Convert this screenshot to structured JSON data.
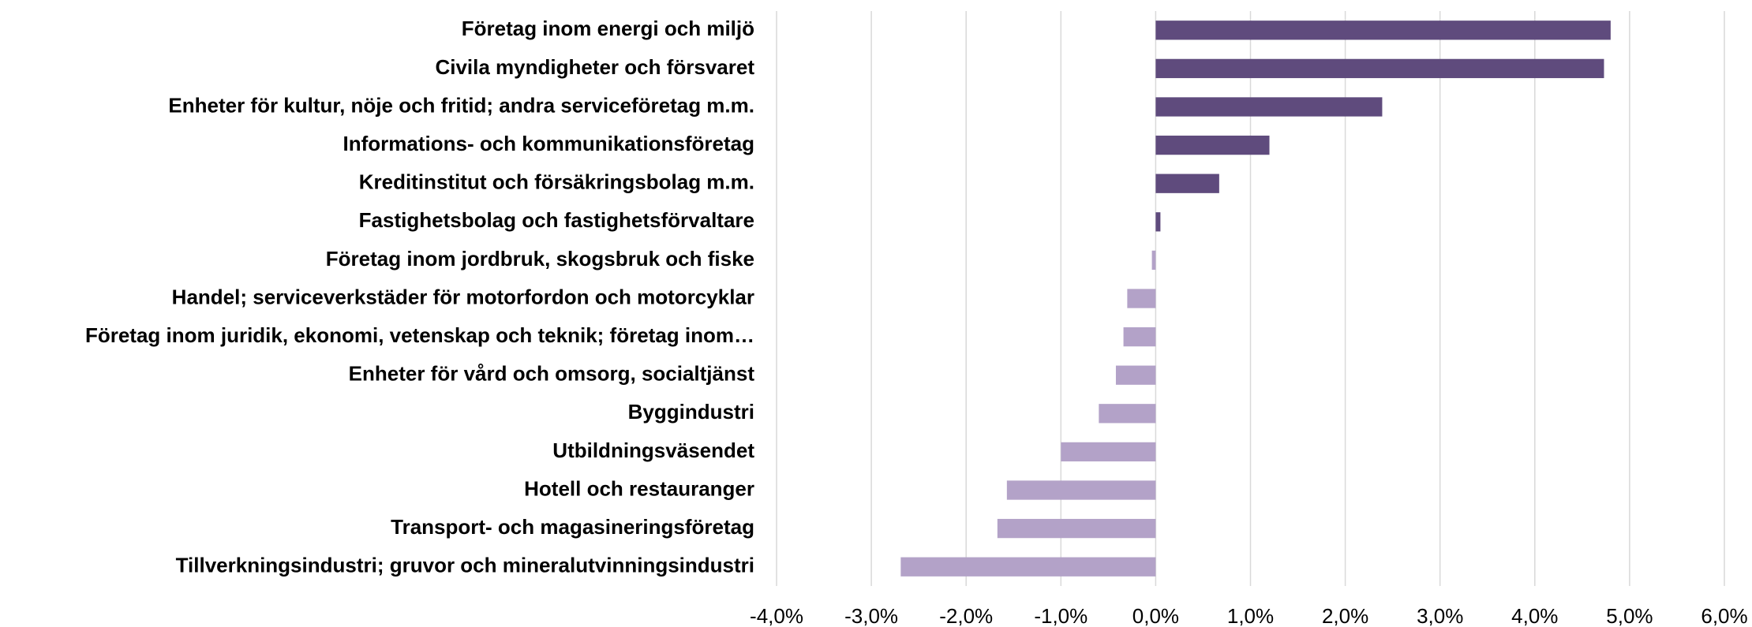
{
  "chart_data": {
    "type": "barh",
    "categories": [
      "Företag inom energi och miljö",
      "Civila myndigheter och försvaret",
      "Enheter för kultur, nöje och fritid; andra serviceföretag m.m.",
      "Informations- och kommunikationsföretag",
      "Kreditinstitut och försäkringsbolag m.m.",
      "Fastighetsbolag och fastighetsförvaltare",
      "Företag inom jordbruk, skogsbruk och fiske",
      "Handel; serviceverkstäder för motorfordon och motorcyklar",
      "Företag inom juridik, ekonomi, vetenskap och teknik; företag inom…",
      "Enheter för vård och omsorg, socialtjänst",
      "Byggindustri",
      "Utbildningsväsendet",
      "Hotell och restauranger",
      "Transport- och magasineringsföretag",
      "Tillverkningsindustri; gruvor och mineralutvinningsindustri"
    ],
    "values": [
      4.8,
      4.73,
      2.39,
      1.2,
      0.67,
      0.05,
      -0.04,
      -0.3,
      -0.34,
      -0.42,
      -0.6,
      -1.0,
      -1.57,
      -1.67,
      -2.69
    ],
    "colors": [
      "#5f4b7d",
      "#5f4b7d",
      "#5f4b7d",
      "#5f4b7d",
      "#5f4b7d",
      "#5f4b7d",
      "#b3a2c8",
      "#b3a2c8",
      "#b3a2c8",
      "#b3a2c8",
      "#b3a2c8",
      "#b3a2c8",
      "#b3a2c8",
      "#b3a2c8",
      "#b3a2c8"
    ],
    "xlim": [
      -4,
      6
    ],
    "xticks": [
      {
        "value": -4,
        "label": "-4,0%"
      },
      {
        "value": -3,
        "label": "-3,0%"
      },
      {
        "value": -2,
        "label": "-2,0%"
      },
      {
        "value": -1,
        "label": "-1,0%"
      },
      {
        "value": 0,
        "label": "0,0%"
      },
      {
        "value": 1,
        "label": "1,0%"
      },
      {
        "value": 2,
        "label": "2,0%"
      },
      {
        "value": 3,
        "label": "3,0%"
      },
      {
        "value": 4,
        "label": "4,0%"
      },
      {
        "value": 5,
        "label": "5,0%"
      },
      {
        "value": 6,
        "label": "6,0%"
      }
    ],
    "grid": true
  }
}
